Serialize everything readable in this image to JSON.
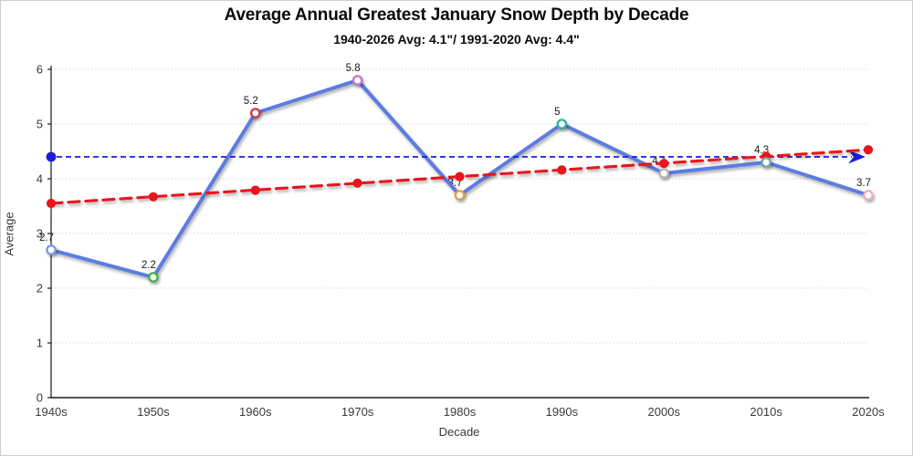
{
  "window": {
    "background": "#ffffff",
    "border_color": "#cfcfcf"
  },
  "chart_data": {
    "type": "line",
    "title": "Average Annual Greatest January Snow Depth by Decade",
    "subtitle": "1940-2026 Avg: 4.1\"/ 1991-2020 Avg: 4.4\"",
    "xlabel": "Decade",
    "ylabel": "Average",
    "ylim": [
      0,
      6
    ],
    "y_ticks": [
      0,
      1,
      2,
      3,
      4,
      5,
      6
    ],
    "grid": true,
    "legend": false,
    "categories": [
      "1940s",
      "1950s",
      "1960s",
      "1970s",
      "1980s",
      "1990s",
      "2000s",
      "2010s",
      "2020s"
    ],
    "series": [
      {
        "name": "avg-january-snow-depth",
        "type": "line-with-markers",
        "color": "#5B7CE2",
        "values": [
          2.7,
          2.2,
          5.2,
          5.8,
          3.7,
          5,
          4.1,
          4.3,
          3.7
        ],
        "point_labels": [
          "2.7",
          "2.2",
          "5.2",
          "5.8",
          "3.7",
          "5",
          "4.1",
          "4.3",
          "3.7"
        ],
        "marker_colors": [
          "#7B97EC",
          "#43B049",
          "#CE3550",
          "#C772CE",
          "#E79E3C",
          "#2DB49C",
          "#B3B3B3",
          "#74A7B2",
          "#EDAABE"
        ]
      },
      {
        "name": "linear-trend",
        "type": "dashed-trend-line",
        "color": "#E8151B",
        "values": [
          3.55,
          3.67,
          3.79,
          3.92,
          4.04,
          4.16,
          4.28,
          4.41,
          4.53
        ]
      },
      {
        "name": "reference-1991-2020-average",
        "type": "dashed-reference-line",
        "color": "#1C1CDB",
        "value": 4.4,
        "start_marker": "dot",
        "end_marker": "arrow"
      }
    ],
    "axis_text_color": "#3a3a3a",
    "axis_line_color": "#1a1a1a",
    "gridline_color": "#d9d9d9",
    "label_text_color": "#1a1a1a"
  }
}
